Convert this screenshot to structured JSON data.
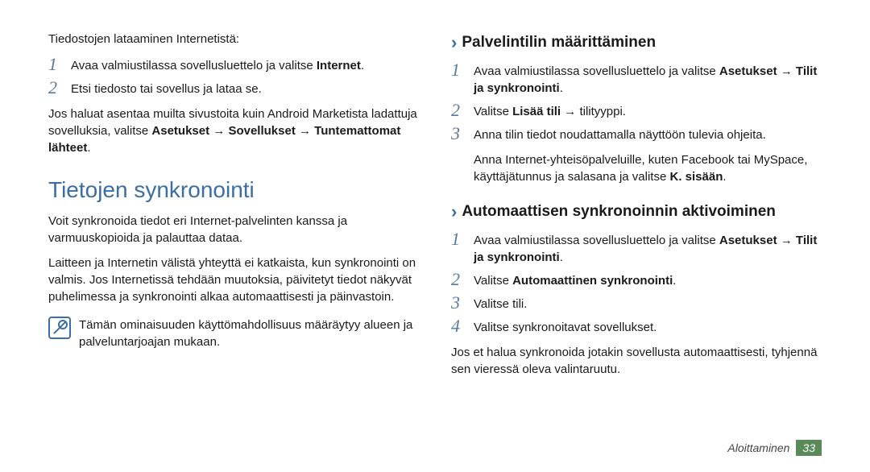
{
  "left": {
    "intro": "Tiedostojen lataaminen Internetistä:",
    "steps_a": [
      {
        "n": "1",
        "html": "Avaa valmiustilassa sovellusluettelo ja valitse <b>Internet</b>."
      },
      {
        "n": "2",
        "html": "Etsi tiedosto tai sovellus ja lataa se."
      }
    ],
    "para_a": "Jos haluat asentaa muilta sivustoita kuin Android Marketista ladattuja sovelluksia, valitse <b>Asetukset</b> → <b>Sovellukset</b> → <b>Tuntemattomat lähteet</b>.",
    "h1": "Tietojen synkronointi",
    "para_b": "Voit synkronoida tiedot eri Internet-palvelinten kanssa ja varmuuskopioida ja palauttaa dataa.",
    "para_c": "Laitteen ja Internetin välistä yhteyttä ei katkaista, kun synkronointi on valmis. Jos Internetissä tehdään muutoksia, päivitetyt tiedot näkyvät puhelimessa ja synkronointi alkaa automaattisesti ja päinvastoin.",
    "note": "Tämän ominaisuuden käyttömahdollisuus määräytyy alueen ja palveluntarjoajan mukaan."
  },
  "right": {
    "h2_a": "Palvelintilin määrittäminen",
    "steps_a": [
      {
        "n": "1",
        "html": "Avaa valmiustilassa sovellusluettelo ja valitse <b>Asetukset</b> → <b>Tilit ja synkronointi</b>."
      },
      {
        "n": "2",
        "html": "Valitse <b>Lisää tili</b> → tilityyppi."
      },
      {
        "n": "3",
        "html": "Anna tilin tiedot noudattamalla näyttöön tulevia ohjeita."
      }
    ],
    "para_a": "Anna Internet-yhteisöpalveluille, kuten Facebook tai MySpace, käyttäjätunnus ja salasana ja valitse <b>K. sisään</b>.",
    "h2_b": "Automaattisen synkronoinnin aktivoiminen",
    "steps_b": [
      {
        "n": "1",
        "html": "Avaa valmiustilassa sovellusluettelo ja valitse <b>Asetukset</b> → <b>Tilit ja synkronointi</b>."
      },
      {
        "n": "2",
        "html": "Valitse <b>Automaattinen synkronointi</b>."
      },
      {
        "n": "3",
        "html": "Valitse tili."
      },
      {
        "n": "4",
        "html": "Valitse synkronoitavat sovellukset."
      }
    ],
    "para_b": "Jos et halua synkronoida jotakin sovellusta automaattisesti, tyhjennä sen vieressä oleva valintaruutu."
  },
  "footer": {
    "label": "Aloittaminen",
    "page": "33"
  }
}
